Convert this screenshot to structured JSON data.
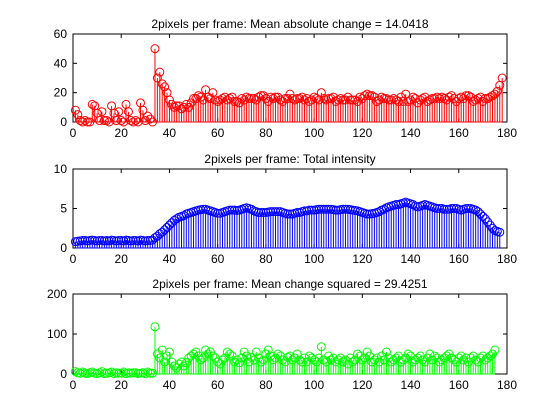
{
  "chart_data": [
    {
      "type": "stem",
      "title": "2pixels per frame: Mean absolute change = 14.0418",
      "color": "#ff0000",
      "xlim": [
        0,
        180
      ],
      "ylim": [
        0,
        60
      ],
      "xticks": [
        "0",
        "20",
        "40",
        "60",
        "80",
        "100",
        "120",
        "140",
        "160",
        "180"
      ],
      "yticks": [
        "0",
        "20",
        "40",
        "60"
      ],
      "x_start": 1,
      "values": [
        8,
        5,
        1,
        0,
        1,
        0,
        0,
        12,
        11,
        6,
        1,
        7,
        1,
        1,
        0,
        11,
        6,
        1,
        7,
        1,
        0,
        12,
        7,
        1,
        0,
        1,
        0,
        13,
        8,
        1,
        4,
        2,
        0,
        50,
        30,
        34,
        26,
        24,
        20,
        15,
        12,
        10,
        11,
        11,
        9,
        10,
        12,
        10,
        13,
        16,
        16,
        18,
        17,
        15,
        22,
        17,
        16,
        20,
        15,
        14,
        15,
        16,
        17,
        15,
        16,
        17,
        14,
        14,
        13,
        16,
        15,
        17,
        16,
        16,
        16,
        15,
        17,
        18,
        18,
        16,
        14,
        17,
        16,
        17,
        17,
        15,
        14,
        16,
        16,
        19,
        16,
        15,
        16,
        16,
        17,
        15,
        16,
        14,
        15,
        17,
        16,
        15,
        20,
        16,
        15,
        16,
        16,
        17,
        14,
        15,
        16,
        15,
        15,
        17,
        15,
        15,
        15,
        14,
        17,
        16,
        18,
        19,
        18,
        18,
        17,
        14,
        15,
        17,
        16,
        16,
        15,
        15,
        16,
        15,
        14,
        17,
        14,
        19,
        14,
        15,
        17,
        16,
        13,
        15,
        16,
        17,
        14,
        15,
        16,
        16,
        17,
        16,
        17,
        16,
        15,
        17,
        18,
        16,
        14,
        16,
        17,
        16,
        18,
        18,
        17,
        14,
        15,
        16,
        17,
        14,
        16,
        16,
        17,
        18,
        19,
        21,
        25,
        30
      ]
    },
    {
      "type": "stem",
      "title": "2pixels per frame: Total intensity",
      "color": "#0000ff",
      "xlim": [
        0,
        180
      ],
      "ylim": [
        0,
        10
      ],
      "xticks": [
        "0",
        "20",
        "40",
        "60",
        "80",
        "100",
        "120",
        "140",
        "160",
        "180"
      ],
      "yticks": [
        "0",
        "5",
        "10"
      ],
      "x_start": 1,
      "values": [
        0.8,
        0.85,
        0.9,
        0.95,
        0.95,
        0.9,
        0.95,
        1.0,
        0.95,
        0.9,
        0.95,
        0.95,
        0.9,
        0.95,
        0.9,
        1.0,
        0.95,
        0.9,
        0.95,
        0.95,
        0.9,
        1.0,
        0.95,
        0.9,
        0.95,
        0.95,
        0.9,
        1.0,
        0.95,
        0.9,
        0.95,
        0.95,
        1.0,
        1.3,
        1.5,
        1.8,
        2.0,
        2.3,
        2.6,
        2.9,
        3.2,
        3.5,
        3.7,
        3.9,
        4.0,
        4.1,
        4.3,
        4.4,
        4.5,
        4.6,
        4.7,
        4.8,
        4.85,
        4.9,
        4.9,
        4.8,
        4.7,
        4.6,
        4.5,
        4.4,
        4.4,
        4.5,
        4.6,
        4.7,
        4.8,
        4.8,
        4.8,
        4.75,
        4.8,
        4.9,
        5.0,
        5.1,
        5.0,
        4.9,
        4.7,
        4.6,
        4.5,
        4.5,
        4.5,
        4.5,
        4.55,
        4.6,
        4.6,
        4.6,
        4.6,
        4.6,
        4.5,
        4.4,
        4.3,
        4.3,
        4.3,
        4.4,
        4.5,
        4.5,
        4.6,
        4.7,
        4.7,
        4.8,
        4.8,
        4.8,
        4.85,
        4.9,
        4.9,
        4.9,
        4.9,
        4.9,
        4.9,
        4.85,
        4.8,
        4.8,
        4.85,
        4.9,
        4.9,
        4.9,
        4.85,
        4.8,
        4.75,
        4.7,
        4.6,
        4.5,
        4.4,
        4.3,
        4.3,
        4.35,
        4.4,
        4.5,
        4.6,
        4.8,
        4.9,
        5.1,
        5.2,
        5.3,
        5.4,
        5.5,
        5.5,
        5.6,
        5.7,
        5.8,
        5.7,
        5.6,
        5.5,
        5.3,
        5.2,
        5.3,
        5.4,
        5.5,
        5.4,
        5.3,
        5.2,
        5.1,
        5.0,
        5.0,
        5.0,
        4.9,
        4.9,
        4.9,
        5.0,
        5.0,
        5.0,
        4.9,
        4.8,
        4.9,
        5.0,
        5.0,
        5.0,
        4.9,
        4.8,
        4.6,
        4.3,
        4.0,
        3.7,
        3.3,
        2.9,
        2.5,
        2.2,
        2.1,
        2.0
      ]
    },
    {
      "type": "stem",
      "title": "2pixels per frame: Mean change squared = 29.4251",
      "color": "#00ff00",
      "xlim": [
        0,
        180
      ],
      "ylim": [
        0,
        200
      ],
      "xticks": [
        "0",
        "20",
        "40",
        "60",
        "80",
        "100",
        "120",
        "140",
        "160",
        "180"
      ],
      "yticks": [
        "0",
        "100",
        "200"
      ],
      "x_start": 1,
      "values": [
        6,
        3,
        2,
        5,
        2,
        1,
        3,
        5,
        2,
        1,
        3,
        6,
        1,
        2,
        3,
        5,
        1,
        3,
        2,
        2,
        5,
        1,
        3,
        2,
        3,
        3,
        1,
        2,
        3,
        1,
        5,
        2,
        2,
        118,
        50,
        40,
        60,
        30,
        45,
        55,
        30,
        20,
        15,
        25,
        30,
        20,
        28,
        40,
        45,
        50,
        55,
        45,
        35,
        40,
        60,
        50,
        55,
        45,
        40,
        30,
        25,
        35,
        40,
        55,
        50,
        45,
        30,
        35,
        28,
        40,
        55,
        45,
        30,
        42,
        35,
        55,
        40,
        30,
        35,
        50,
        60,
        45,
        35,
        40,
        50,
        45,
        35,
        30,
        42,
        45,
        35,
        40,
        50,
        35,
        30,
        40,
        30,
        45,
        40,
        35,
        30,
        40,
        68,
        35,
        30,
        45,
        35,
        40,
        30,
        35,
        40,
        30,
        35,
        25,
        40,
        30,
        35,
        50,
        45,
        35,
        40,
        55,
        45,
        30,
        35,
        40,
        30,
        45,
        35,
        55,
        40,
        30,
        35,
        40,
        45,
        30,
        35,
        40,
        50,
        45,
        30,
        35,
        40,
        45,
        35,
        30,
        40,
        50,
        35,
        45,
        40,
        30,
        35,
        40,
        45,
        50,
        40,
        35,
        30,
        40,
        45,
        35,
        40,
        30,
        40,
        45,
        35,
        30,
        40,
        45,
        35,
        40,
        45,
        50,
        60
      ]
    }
  ]
}
